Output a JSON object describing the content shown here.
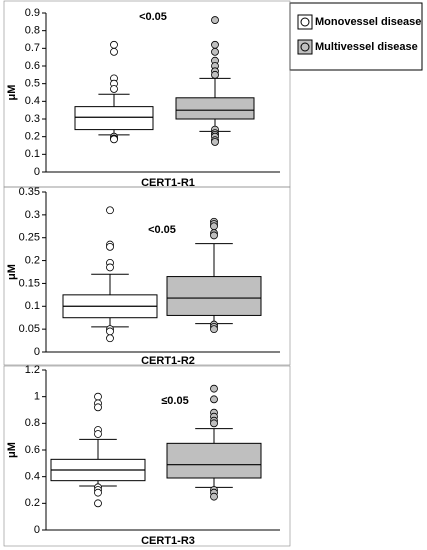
{
  "chart_data": [
    {
      "type": "box",
      "title": "CERT1-R1",
      "ylabel": "μM",
      "annotation": "<0.05",
      "ylim": [
        0,
        0.9
      ],
      "yticks": [
        0,
        0.1,
        0.2,
        0.3,
        0.4,
        0.5,
        0.6,
        0.7,
        0.8,
        0.9
      ],
      "series": [
        {
          "name": "Monovessel disease",
          "color": "#ffffff",
          "min": 0.21,
          "q1": 0.24,
          "median": 0.31,
          "q3": 0.37,
          "max": 0.44,
          "outliers": [
            0.72,
            0.68,
            0.53,
            0.5,
            0.47,
            0.2,
            0.19,
            0.185
          ]
        },
        {
          "name": "Multivessel disease",
          "color": "#bfbfbf",
          "min": 0.23,
          "q1": 0.3,
          "median": 0.35,
          "q3": 0.42,
          "max": 0.53,
          "outliers": [
            0.86,
            0.72,
            0.68,
            0.63,
            0.6,
            0.57,
            0.55,
            0.24,
            0.22,
            0.21,
            0.2,
            0.18,
            0.17
          ]
        }
      ]
    },
    {
      "type": "box",
      "title": "CERT1-R2",
      "ylabel": "μM",
      "annotation": "<0.05",
      "ylim": [
        0,
        0.35
      ],
      "yticks": [
        0,
        0.05,
        0.1,
        0.15,
        0.2,
        0.25,
        0.3,
        0.35
      ],
      "series": [
        {
          "color": "#ffffff",
          "min": 0.055,
          "q1": 0.075,
          "median": 0.1,
          "q3": 0.125,
          "max": 0.17,
          "outliers": [
            0.31,
            0.235,
            0.23,
            0.195,
            0.185,
            0.05,
            0.045,
            0.03
          ]
        },
        {
          "color": "#bfbfbf",
          "min": 0.062,
          "q1": 0.08,
          "median": 0.118,
          "q3": 0.165,
          "max": 0.237,
          "outliers": [
            0.285,
            0.28,
            0.275,
            0.26,
            0.255,
            0.06,
            0.055,
            0.05
          ]
        }
      ]
    },
    {
      "type": "box",
      "title": "CERT1-R3",
      "ylabel": "μM",
      "annotation": "≤0.05",
      "ylim": [
        0,
        1.2
      ],
      "yticks": [
        0,
        0.2,
        0.4,
        0.6,
        0.8,
        1,
        1.2
      ],
      "series": [
        {
          "color": "#ffffff",
          "min": 0.33,
          "q1": 0.37,
          "median": 0.45,
          "q3": 0.53,
          "max": 0.68,
          "outliers": [
            1.0,
            0.95,
            0.92,
            0.75,
            0.72,
            0.32,
            0.3,
            0.28,
            0.2
          ]
        },
        {
          "color": "#bfbfbf",
          "min": 0.32,
          "q1": 0.39,
          "median": 0.49,
          "q3": 0.65,
          "max": 0.76,
          "outliers": [
            1.06,
            0.98,
            0.88,
            0.85,
            0.82,
            0.8,
            0.3,
            0.28,
            0.25
          ]
        }
      ]
    }
  ]
}
